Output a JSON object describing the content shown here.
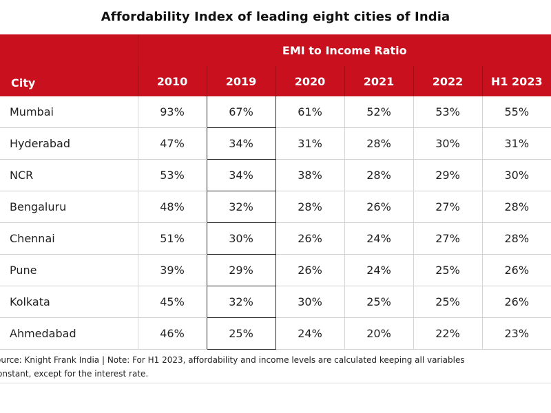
{
  "title": "Affordability Index of leading eight cities of India",
  "chart_data": {
    "type": "table",
    "title": "Affordability Index of leading eight cities of India",
    "row_header": "City",
    "group_header": "EMI to Income Ratio",
    "columns": [
      "2010",
      "2019",
      "2020",
      "2021",
      "2022",
      "H1 2023"
    ],
    "rows": [
      {
        "city": "Mumbai",
        "values": [
          "93%",
          "67%",
          "61%",
          "52%",
          "53%",
          "55%"
        ]
      },
      {
        "city": "Hyderabad",
        "values": [
          "47%",
          "34%",
          "31%",
          "28%",
          "30%",
          "31%"
        ]
      },
      {
        "city": "NCR",
        "values": [
          "53%",
          "34%",
          "38%",
          "28%",
          "29%",
          "30%"
        ]
      },
      {
        "city": "Bengaluru",
        "values": [
          "48%",
          "32%",
          "28%",
          "26%",
          "27%",
          "28%"
        ]
      },
      {
        "city": "Chennai",
        "values": [
          "51%",
          "30%",
          "26%",
          "24%",
          "27%",
          "28%"
        ]
      },
      {
        "city": "Pune",
        "values": [
          "39%",
          "29%",
          "26%",
          "24%",
          "25%",
          "26%"
        ]
      },
      {
        "city": "Kolkata",
        "values": [
          "45%",
          "32%",
          "30%",
          "25%",
          "25%",
          "26%"
        ]
      },
      {
        "city": "Ahmedabad",
        "values": [
          "46%",
          "25%",
          "24%",
          "20%",
          "22%",
          "23%"
        ]
      }
    ]
  },
  "footnote": {
    "line1": "ource: Knight Frank India | Note: For H1 2023, affordability and income levels are calculated keeping all variables",
    "line2": "onstant, except for the interest rate."
  },
  "colors": {
    "header_bg": "#c8101e",
    "header_text": "#ffffff"
  }
}
